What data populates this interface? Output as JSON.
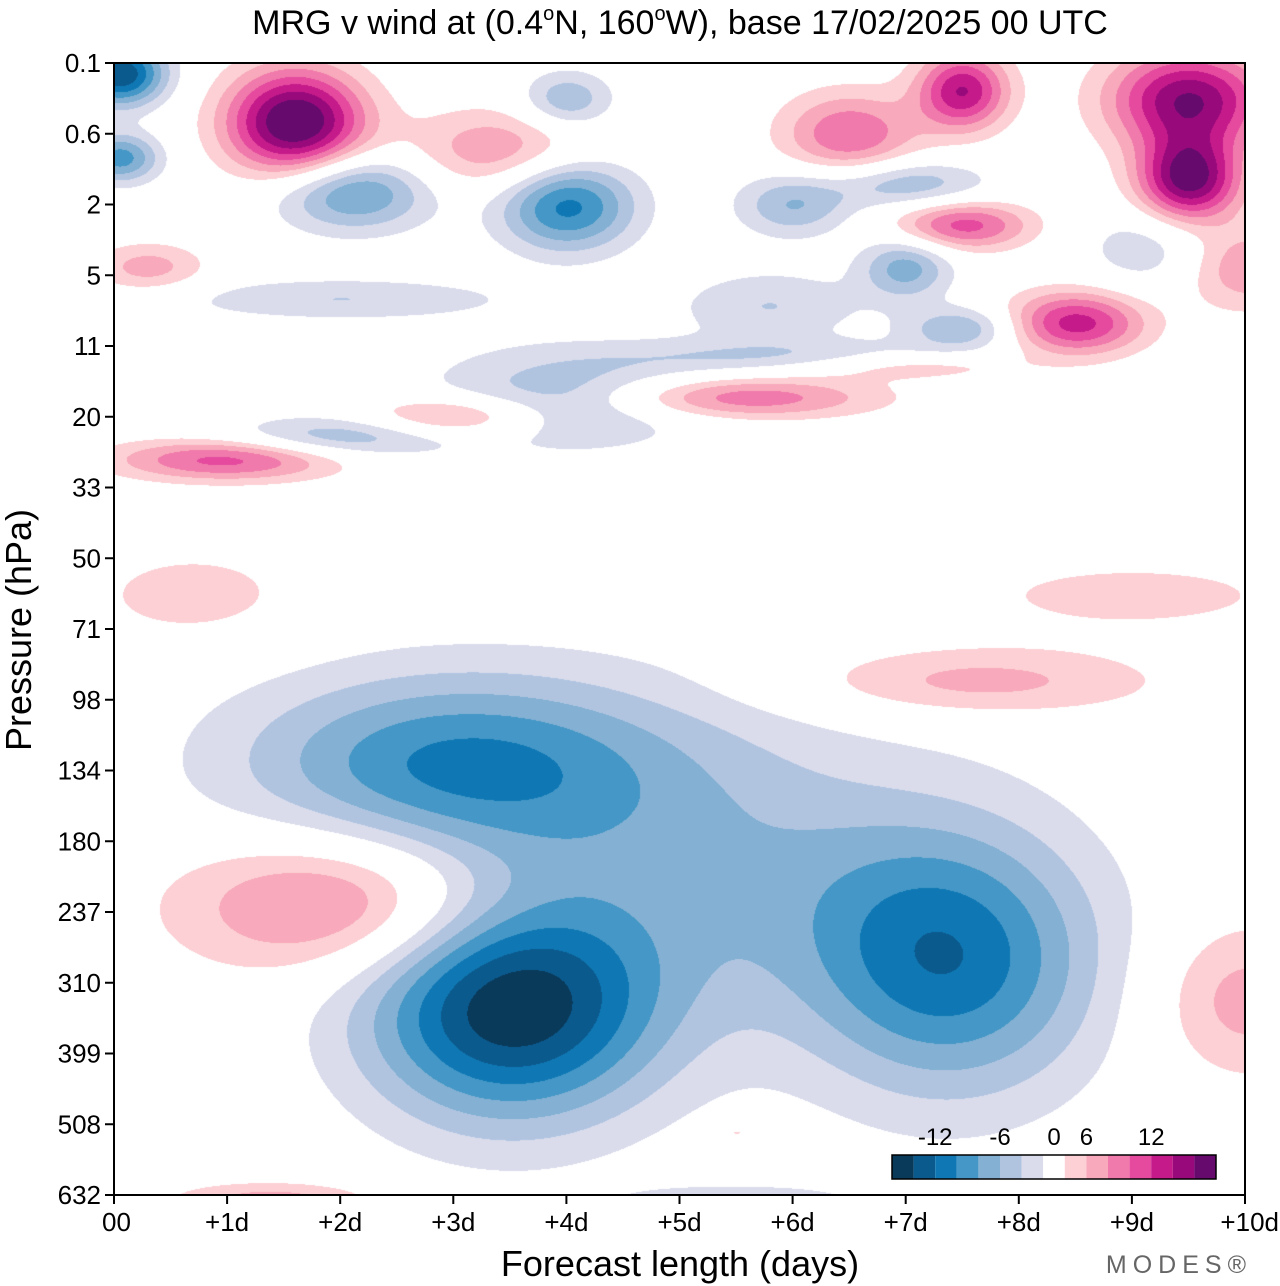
{
  "chart_data": {
    "type": "heatmap",
    "title": "MRG v wind at (0.4°N, 160°W),  base 17/02/2025  00 UTC",
    "title_parts": {
      "prefix": "MRG v wind at (0.4",
      "deg1": "o",
      "middle": "N, 160",
      "deg2": "o",
      "suffix": "W),  base 17/02/2025  00 UTC"
    },
    "xlabel": "Forecast length (days)",
    "ylabel": "Pressure (hPa)",
    "x_ticks": [
      "00",
      "+1d",
      "+2d",
      "+3d",
      "+4d",
      "+5d",
      "+6d",
      "+7d",
      "+8d",
      "+9d",
      "+10d"
    ],
    "y_ticks": [
      "0.1",
      "0.6",
      "2",
      "5",
      "11",
      "20",
      "33",
      "50",
      "71",
      "98",
      "134",
      "180",
      "237",
      "310",
      "399",
      "508",
      "632"
    ],
    "xlim_days": [
      0,
      10
    ],
    "y_scale": "log",
    "legend_position": "bottom-right",
    "colorbar": {
      "tick_labels": [
        "-12",
        "-6",
        "0",
        "6",
        "12"
      ],
      "levels": [
        -16,
        -14,
        -12,
        -10,
        -8,
        -6,
        -4,
        -2,
        2,
        4,
        6,
        8,
        10,
        12,
        14,
        16
      ],
      "colors": [
        "#0a3a5a",
        "#0b5a8e",
        "#0f78b4",
        "#4497c6",
        "#83b0d3",
        "#b0c4e0",
        "#dadcec",
        "#ffffff",
        "#fcd0d4",
        "#f8a9bb",
        "#f07aab",
        "#e54a9e",
        "#c51a8a",
        "#98097c",
        "#660a6e"
      ]
    },
    "blobs": [
      {
        "x": 3.5,
        "p": 340,
        "value": -15,
        "sx": 1.3,
        "sy": 1.6
      },
      {
        "x": 3.0,
        "p": 130,
        "value": -10,
        "sx": 1.9,
        "sy": 1.3
      },
      {
        "x": 7.4,
        "p": 285,
        "value": -11,
        "sx": 1.3,
        "sy": 1.9
      },
      {
        "x": 5.3,
        "p": 200,
        "value": -5,
        "sx": 2.0,
        "sy": 2.2
      },
      {
        "x": 2.0,
        "p": 230,
        "value": 8,
        "sx": 1.4,
        "sy": 1.0
      },
      {
        "x": 0.7,
        "p": 60,
        "value": 3,
        "sx": 1.0,
        "sy": 0.7
      },
      {
        "x": 7.6,
        "p": 90,
        "value": 5,
        "sx": 1.6,
        "sy": 0.5
      },
      {
        "x": 10.0,
        "p": 330,
        "value": 5,
        "sx": 0.8,
        "sy": 1.1
      },
      {
        "x": 9.0,
        "p": 60,
        "value": 3,
        "sx": 1.5,
        "sy": 0.5
      },
      {
        "x": 1.6,
        "p": 0.45,
        "value": 17,
        "sx": 0.6,
        "sy": 0.75
      },
      {
        "x": 0.05,
        "p": 0.13,
        "value": -14,
        "sx": 0.4,
        "sy": 0.45
      },
      {
        "x": 0.05,
        "p": 0.9,
        "value": -9,
        "sx": 0.35,
        "sy": 0.35
      },
      {
        "x": 2.1,
        "p": 1.6,
        "value": -9,
        "sx": 0.7,
        "sy": 0.55
      },
      {
        "x": 4.0,
        "p": 2.0,
        "value": -11,
        "sx": 0.6,
        "sy": 0.65
      },
      {
        "x": 4.0,
        "p": 0.25,
        "value": -6,
        "sx": 0.4,
        "sy": 0.4
      },
      {
        "x": 3.4,
        "p": 0.8,
        "value": 6,
        "sx": 0.8,
        "sy": 0.6
      },
      {
        "x": 6.5,
        "p": 0.6,
        "value": 8,
        "sx": 0.6,
        "sy": 0.6
      },
      {
        "x": 7.5,
        "p": 0.2,
        "value": 12,
        "sx": 0.4,
        "sy": 0.55
      },
      {
        "x": 9.5,
        "p": 0.25,
        "value": 14,
        "sx": 0.7,
        "sy": 0.7
      },
      {
        "x": 9.5,
        "p": 1.3,
        "value": 15,
        "sx": 0.45,
        "sy": 0.6
      },
      {
        "x": 7.5,
        "p": 2.6,
        "value": 9,
        "sx": 0.6,
        "sy": 0.35
      },
      {
        "x": 8.5,
        "p": 8.5,
        "value": 11,
        "sx": 0.6,
        "sy": 0.45
      },
      {
        "x": 10.0,
        "p": 4.5,
        "value": 6,
        "sx": 0.6,
        "sy": 0.6
      },
      {
        "x": 7.0,
        "p": 4.5,
        "value": -7,
        "sx": 0.4,
        "sy": 0.45
      },
      {
        "x": 7.5,
        "p": 9.0,
        "value": -6,
        "sx": 0.5,
        "sy": 0.3
      },
      {
        "x": 6.0,
        "p": 2.0,
        "value": -6,
        "sx": 0.5,
        "sy": 0.45
      },
      {
        "x": 7.0,
        "p": 1.4,
        "value": -6,
        "sx": 0.7,
        "sy": 0.35
      },
      {
        "x": 4.0,
        "p": 17,
        "value": -6,
        "sx": 1.2,
        "sy": 0.7
      },
      {
        "x": 2.0,
        "p": 23,
        "value": -6,
        "sx": 1.0,
        "sy": 0.3
      },
      {
        "x": 1.0,
        "p": 27,
        "value": 9,
        "sx": 1.0,
        "sy": 0.3
      },
      {
        "x": 3.0,
        "p": 20,
        "value": 7,
        "sx": 0.8,
        "sy": 0.3
      },
      {
        "x": 5.5,
        "p": 17,
        "value": 8,
        "sx": 1.2,
        "sy": 0.3
      },
      {
        "x": 7.0,
        "p": 13,
        "value": 4,
        "sx": 1.0,
        "sy": 0.2
      },
      {
        "x": 0.3,
        "p": 4.5,
        "value": 5,
        "sx": 0.5,
        "sy": 0.35
      },
      {
        "x": 2.0,
        "p": 6.5,
        "value": -4,
        "sx": 1.5,
        "sy": 0.3
      },
      {
        "x": 6.0,
        "p": 12,
        "value": -4,
        "sx": 1.5,
        "sy": 0.25
      },
      {
        "x": 5.8,
        "p": 7.0,
        "value": -4,
        "sx": 0.8,
        "sy": 0.5
      },
      {
        "x": 9.2,
        "p": 3.5,
        "value": -4,
        "sx": 0.6,
        "sy": 0.6
      },
      {
        "x": 1.4,
        "p": 640,
        "value": 5,
        "sx": 0.9,
        "sy": 0.25
      },
      {
        "x": 5.5,
        "p": 640,
        "value": -4,
        "sx": 1.0,
        "sy": 0.2
      },
      {
        "x": 5.5,
        "p": 520,
        "value": 3,
        "sx": 0.25,
        "sy": 0.15
      }
    ]
  },
  "watermark": "MODES®"
}
